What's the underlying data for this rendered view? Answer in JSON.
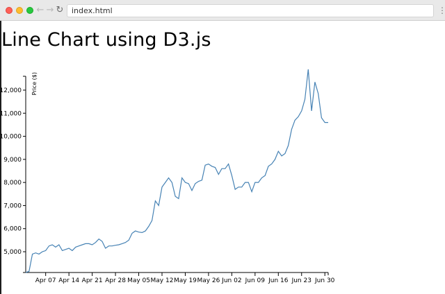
{
  "browser": {
    "address": "index.html",
    "back_glyph": "←",
    "forward_glyph": "→",
    "reload_glyph": "↻",
    "menu_glyph": "⋮",
    "back_icon": "arrow-left-icon",
    "forward_icon": "arrow-right-icon",
    "reload_icon": "reload-icon",
    "menu_icon": "vertical-dots-icon"
  },
  "page": {
    "title": "Line Chart using D3.js"
  },
  "chart_data": {
    "type": "line",
    "title": "Line Chart using D3.js",
    "xlabel": "",
    "ylabel": "Price ($)",
    "ylim": [
      4100,
      12900
    ],
    "xlim": [
      "2018-04-01",
      "2018-07-01"
    ],
    "x_tick_labels": [
      "Apr 07",
      "Apr 14",
      "Apr 21",
      "Apr 28",
      "May 05",
      "May 12",
      "May 19",
      "May 26",
      "Jun 02",
      "Jun 09",
      "Jun 16",
      "Jun 23",
      "Jun 30"
    ],
    "x_tick_dates": [
      "2018-04-07",
      "2018-04-14",
      "2018-04-21",
      "2018-04-28",
      "2018-05-05",
      "2018-05-12",
      "2018-05-19",
      "2018-05-26",
      "2018-06-02",
      "2018-06-09",
      "2018-06-16",
      "2018-06-23",
      "2018-06-30"
    ],
    "y_tick_labels": [
      "5,000",
      "6,000",
      "7,000",
      "8,000",
      "9,000",
      "10,000",
      "11,000",
      "12,000"
    ],
    "y_tick_values": [
      5000,
      6000,
      7000,
      8000,
      9000,
      10000,
      11000,
      12000
    ],
    "grid": false,
    "line_color": "#4682b4",
    "series": [
      {
        "dates": [
          "2018-04-01",
          "2018-04-02",
          "2018-04-03",
          "2018-04-04",
          "2018-04-05",
          "2018-04-06",
          "2018-04-07",
          "2018-04-08",
          "2018-04-09",
          "2018-04-10",
          "2018-04-11",
          "2018-04-12",
          "2018-04-13",
          "2018-04-14",
          "2018-04-15",
          "2018-04-16",
          "2018-04-17",
          "2018-04-18",
          "2018-04-19",
          "2018-04-20",
          "2018-04-21",
          "2018-04-22",
          "2018-04-23",
          "2018-04-24",
          "2018-04-25",
          "2018-04-26",
          "2018-04-27",
          "2018-04-28",
          "2018-04-29",
          "2018-04-30",
          "2018-05-01",
          "2018-05-02",
          "2018-05-03",
          "2018-05-04",
          "2018-05-05",
          "2018-05-06",
          "2018-05-07",
          "2018-05-08",
          "2018-05-09",
          "2018-05-10",
          "2018-05-11",
          "2018-05-12",
          "2018-05-13",
          "2018-05-14",
          "2018-05-15",
          "2018-05-16",
          "2018-05-17",
          "2018-05-18",
          "2018-05-19",
          "2018-05-20",
          "2018-05-21",
          "2018-05-22",
          "2018-05-23",
          "2018-05-24",
          "2018-05-25",
          "2018-05-26",
          "2018-05-27",
          "2018-05-28",
          "2018-05-29",
          "2018-05-30",
          "2018-05-31",
          "2018-06-01",
          "2018-06-02",
          "2018-06-03",
          "2018-06-04",
          "2018-06-05",
          "2018-06-06",
          "2018-06-07",
          "2018-06-08",
          "2018-06-09",
          "2018-06-10",
          "2018-06-11",
          "2018-06-12",
          "2018-06-13",
          "2018-06-14",
          "2018-06-15",
          "2018-06-16",
          "2018-06-17",
          "2018-06-18",
          "2018-06-19",
          "2018-06-20",
          "2018-06-21",
          "2018-06-22",
          "2018-06-23",
          "2018-06-24",
          "2018-06-25",
          "2018-06-26",
          "2018-06-27",
          "2018-06-28",
          "2018-06-29",
          "2018-06-30",
          "2018-07-01"
        ],
        "values": [
          4100,
          4150,
          4900,
          4950,
          4900,
          5000,
          5050,
          5250,
          5300,
          5200,
          5300,
          5050,
          5100,
          5150,
          5050,
          5200,
          5250,
          5300,
          5350,
          5350,
          5300,
          5400,
          5550,
          5450,
          5150,
          5250,
          5250,
          5280,
          5300,
          5350,
          5400,
          5500,
          5800,
          5900,
          5850,
          5830,
          5900,
          6100,
          6350,
          7200,
          7000,
          7800,
          8000,
          8200,
          8000,
          7400,
          7300,
          8200,
          8000,
          7950,
          7650,
          7950,
          8050,
          8100,
          8750,
          8800,
          8700,
          8650,
          8350,
          8600,
          8600,
          8800,
          8300,
          7700,
          7800,
          7800,
          8000,
          8000,
          7600,
          8000,
          8000,
          8200,
          8300,
          8700,
          8800,
          9000,
          9350,
          9150,
          9250,
          9600,
          10300,
          10700,
          10850,
          11100,
          11600,
          12900,
          11100,
          12350,
          11850,
          10800,
          10600,
          10600
        ]
      }
    ]
  }
}
